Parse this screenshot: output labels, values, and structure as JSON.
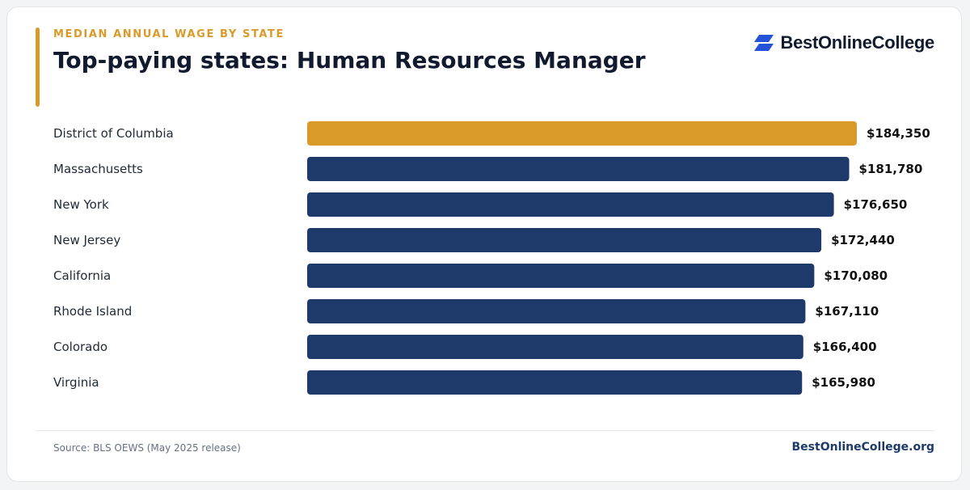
{
  "header": {
    "eyebrow": "MEDIAN ANNUAL WAGE BY STATE",
    "title": "Top-paying states: Human Resources Manager"
  },
  "brand": {
    "logo_text": "BestOnlineCollege",
    "logo_icon": "stacked-parallelogram-logo-icon",
    "footer_site": "BestOnlineCollege.org"
  },
  "footer": {
    "source": "Source: BLS OEWS (May 2025 release)"
  },
  "colors": {
    "accent": "#d99a29",
    "bar": "#1e3a6b",
    "highlight": "#d99a29",
    "logo_blue": "#2453d8"
  },
  "chart_data": {
    "type": "bar",
    "orientation": "horizontal",
    "categories": [
      "District of Columbia",
      "Massachusetts",
      "New York",
      "New Jersey",
      "California",
      "Rhode Island",
      "Colorado",
      "Virginia"
    ],
    "values": [
      184350,
      181780,
      176650,
      172440,
      170080,
      167110,
      166400,
      165980
    ],
    "value_labels": [
      "$184,350",
      "$181,780",
      "$176,650",
      "$172,440",
      "$170,080",
      "$167,110",
      "$166,400",
      "$165,980"
    ],
    "highlight_index": 0,
    "xlim": [
      0,
      184350
    ],
    "grid": false,
    "legend": "none"
  }
}
